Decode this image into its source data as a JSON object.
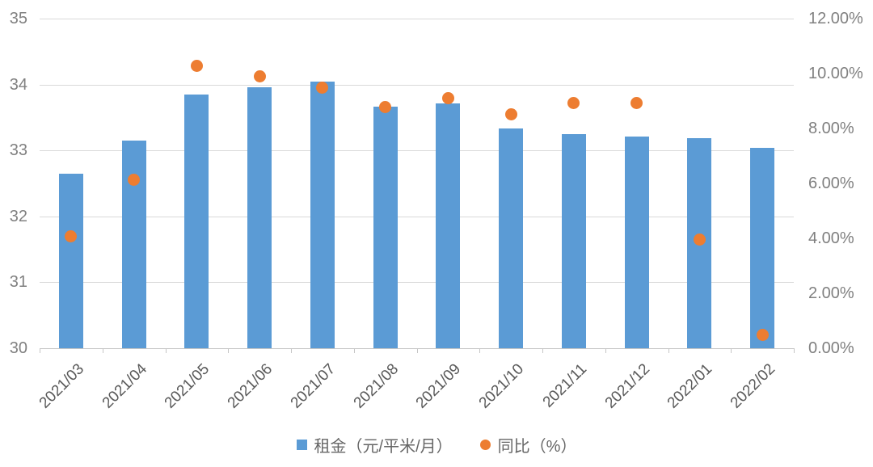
{
  "chart_data": {
    "type": "bar",
    "subtype": "combo-bar-scatter",
    "categories": [
      "2021/03",
      "2021/04",
      "2021/05",
      "2021/06",
      "2021/07",
      "2021/08",
      "2021/09",
      "2021/10",
      "2021/11",
      "2021/12",
      "2022/01",
      "2022/02"
    ],
    "series": [
      {
        "name": "租金（元/平米/月）",
        "type": "bar",
        "axis": "left",
        "values": [
          32.65,
          33.15,
          33.85,
          33.96,
          34.05,
          33.67,
          33.71,
          33.33,
          33.25,
          33.21,
          33.19,
          33.04
        ]
      },
      {
        "name": "同比（%）",
        "type": "scatter",
        "axis": "right",
        "values": [
          4.08,
          6.13,
          10.29,
          9.9,
          9.5,
          8.79,
          9.1,
          8.51,
          8.93,
          8.93,
          3.95,
          0.48
        ]
      }
    ],
    "axes": {
      "left": {
        "min": 30,
        "max": 35,
        "tick_labels": [
          "35",
          "34",
          "33",
          "32",
          "31",
          "30"
        ]
      },
      "right": {
        "min": 0,
        "max": 12,
        "tick_labels": [
          "12.00%",
          "10.00%",
          "8.00%",
          "6.00%",
          "4.00%",
          "2.00%",
          "0.00%"
        ]
      }
    },
    "grid": true,
    "legend_position": "bottom",
    "title": ""
  },
  "colors": {
    "bar": "#5B9BD5",
    "dot": "#ED7D31",
    "gridline": "#D9D9D9",
    "axis_line": "#C6C6C6",
    "y_label": "#808080",
    "x_label": "#595959",
    "legend_text": "#666666",
    "background": "#FFFFFF"
  },
  "legend": {
    "items": [
      {
        "label": "租金（元/平米/月）",
        "marker": "square-icon"
      },
      {
        "label": "同比（%）",
        "marker": "circle-icon"
      }
    ]
  }
}
